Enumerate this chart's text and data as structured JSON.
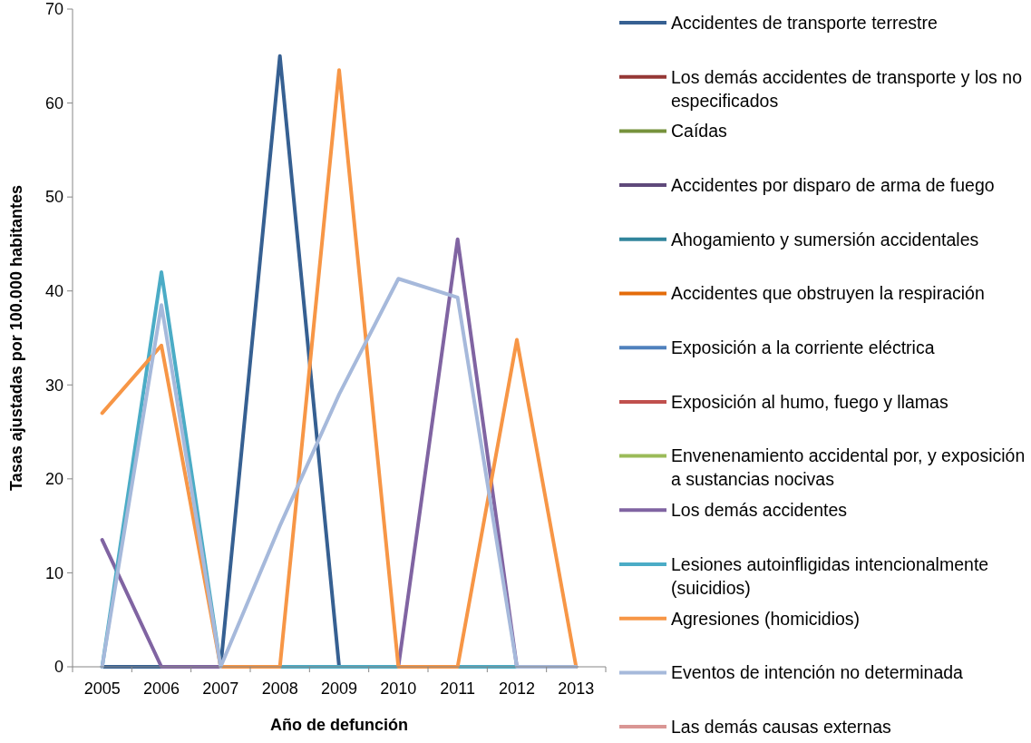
{
  "chart_data": {
    "type": "line",
    "xlabel": "Año de defunción",
    "ylabel": "Tasas ajustadas por 100.000 habitantes",
    "categories": [
      "2005",
      "2006",
      "2007",
      "2008",
      "2009",
      "2010",
      "2011",
      "2012",
      "2013"
    ],
    "ylim": [
      0,
      70
    ],
    "yticks": [
      0,
      10,
      20,
      30,
      40,
      50,
      60,
      70
    ],
    "grid": false,
    "legend": "right",
    "marker": "none",
    "line_style": "solid",
    "series": [
      {
        "name": "Accidentes de transporte terrestre",
        "color": "#366092",
        "values": [
          0,
          0,
          0,
          65,
          0,
          0,
          0,
          0,
          0
        ]
      },
      {
        "name": "Los demás accidentes de transporte y los no especificados",
        "color": "#953735",
        "values": [
          null,
          null,
          null,
          null,
          null,
          null,
          null,
          null,
          null
        ]
      },
      {
        "name": "Caídas",
        "color": "#76923c",
        "values": [
          null,
          null,
          null,
          null,
          null,
          null,
          null,
          null,
          null
        ]
      },
      {
        "name": "Accidentes por disparo de arma de fuego",
        "color": "#5f497a",
        "values": [
          null,
          null,
          null,
          null,
          null,
          null,
          null,
          null,
          null
        ]
      },
      {
        "name": "Ahogamiento y sumersión accidentales",
        "color": "#31859c",
        "values": [
          null,
          null,
          null,
          null,
          null,
          null,
          null,
          null,
          null
        ]
      },
      {
        "name": "Accidentes que obstruyen la respiración",
        "color": "#e46c0a",
        "values": [
          null,
          null,
          null,
          null,
          null,
          null,
          null,
          null,
          null
        ]
      },
      {
        "name": "Exposición a la corriente eléctrica",
        "color": "#4f81bd",
        "values": [
          null,
          null,
          null,
          null,
          null,
          null,
          null,
          null,
          null
        ]
      },
      {
        "name": "Exposición al humo, fuego y llamas",
        "color": "#c0504d",
        "values": [
          null,
          null,
          null,
          null,
          null,
          null,
          null,
          null,
          null
        ]
      },
      {
        "name": "Envenenamiento accidental por, y exposición a sustancias nocivas",
        "color": "#9bbb59",
        "values": [
          null,
          null,
          null,
          null,
          null,
          null,
          null,
          null,
          null
        ]
      },
      {
        "name": "Los demás accidentes",
        "color": "#8064a2",
        "values": [
          13.5,
          0,
          0,
          0,
          0,
          0,
          45.5,
          0,
          0
        ]
      },
      {
        "name": "Lesiones autoinfligidas intencionalmente (suicidios)",
        "color": "#4bacc6",
        "values": [
          0,
          42,
          0,
          0,
          0,
          0,
          0,
          0,
          0
        ]
      },
      {
        "name": "Agresiones (homicidios)",
        "color": "#f79646",
        "values": [
          27,
          34.2,
          0,
          0,
          63.5,
          0,
          0,
          34.8,
          0
        ]
      },
      {
        "name": "Eventos de intención no determinada",
        "color": "#a6b9db",
        "values": [
          0,
          38.5,
          0,
          15,
          29,
          41.3,
          39.3,
          0,
          0
        ]
      },
      {
        "name": "Las demás causas externas",
        "color": "#d99694",
        "values": [
          null,
          null,
          null,
          null,
          null,
          null,
          null,
          null,
          null
        ]
      }
    ]
  }
}
